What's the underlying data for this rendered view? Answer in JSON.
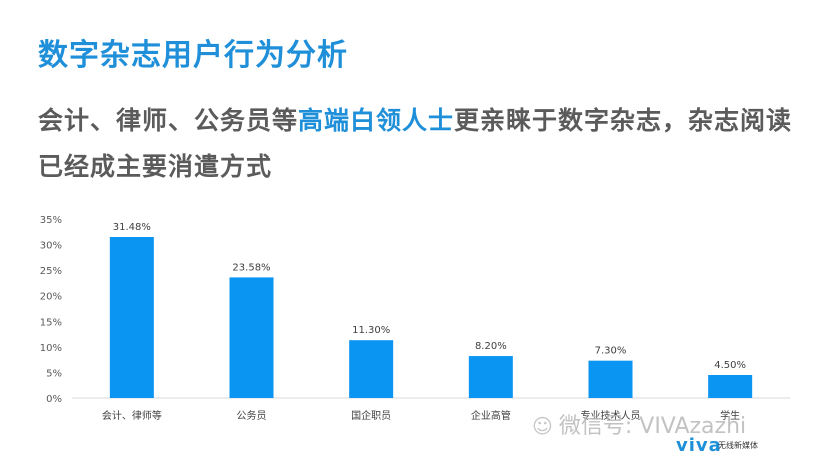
{
  "header": {
    "title": "数字杂志用户行为分析",
    "subtitle_pre": "会计、律师、公务员等",
    "subtitle_highlight": "高端白领人士",
    "subtitle_post": "更亲睐于数字杂志，杂志阅读已经成主要消遣方式"
  },
  "colors": {
    "bar": "#0a95f2",
    "accent": "#1e8fd8",
    "text": "#5b5b5b"
  },
  "chart_data": {
    "type": "bar",
    "categories": [
      "会计、律师等",
      "公务员",
      "国企职员",
      "企业高管",
      "专业技术人员",
      "学生"
    ],
    "values": [
      31.48,
      23.58,
      11.3,
      8.2,
      7.3,
      4.5
    ],
    "value_labels": [
      "31.48%",
      "23.58%",
      "11.30%",
      "8.20%",
      "7.30%",
      "4.50%"
    ],
    "yticks": [
      "0%",
      "5%",
      "10%",
      "15%",
      "20%",
      "25%",
      "30%",
      "35%"
    ],
    "ylim": [
      0,
      35
    ],
    "grid": false
  },
  "watermark": {
    "icon": "wechat-icon",
    "text": "微信号: VIVAzazhi"
  },
  "logo": {
    "name": "viva",
    "tagline": "无线新媒体"
  }
}
